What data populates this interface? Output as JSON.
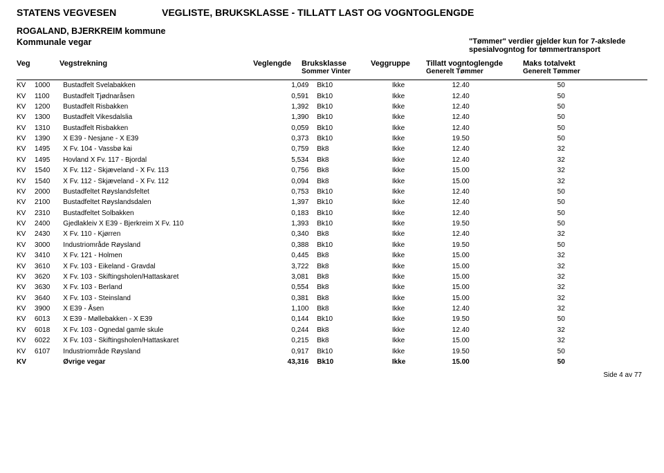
{
  "header": {
    "agency": "STATENS VEGVESEN",
    "title": "VEGLISTE, BRUKSKLASSE - TILLATT LAST OG VOGNTOGLENGDE",
    "region": "ROGALAND, BJERKREIM kommune",
    "roadtype": "Kommunale vegar",
    "timber_note1": "\"Tømmer\" verdier gjelder kun for 7-akslede",
    "timber_note2": "spesialvogntog for tømmertransport"
  },
  "columns": {
    "veg": "Veg",
    "str": "Vegstrekning",
    "len": "Veglengde",
    "bk": "Bruksklasse",
    "bk_sub": "Sommer   Vinter",
    "grp": "Veggruppe",
    "vog": "Tillatt vogntoglengde",
    "vog_sub": "Generelt       Tømmer",
    "max": "Maks totalvekt",
    "max_sub": "Generelt  Tømmer"
  },
  "rows": [
    {
      "v1": "KV",
      "v2": "1000",
      "str": "Bustadfelt Svelabakken",
      "len": "1,049",
      "bk": "Bk10",
      "grp": "Ikke",
      "vogg": "12.40",
      "vogt": "",
      "maxg": "50",
      "maxt": ""
    },
    {
      "v1": "KV",
      "v2": "1100",
      "str": "Bustadfelt Tjødnaråsen",
      "len": "0,591",
      "bk": "Bk10",
      "grp": "Ikke",
      "vogg": "12.40",
      "vogt": "",
      "maxg": "50",
      "maxt": ""
    },
    {
      "v1": "KV",
      "v2": "1200",
      "str": "Bustadfelt Risbakken",
      "len": "1,392",
      "bk": "Bk10",
      "grp": "Ikke",
      "vogg": "12.40",
      "vogt": "",
      "maxg": "50",
      "maxt": ""
    },
    {
      "v1": "KV",
      "v2": "1300",
      "str": "Bustadfelt Vikesdalslia",
      "len": "1,390",
      "bk": "Bk10",
      "grp": "Ikke",
      "vogg": "12.40",
      "vogt": "",
      "maxg": "50",
      "maxt": ""
    },
    {
      "v1": "KV",
      "v2": "1310",
      "str": "Bustadfelt Risbakken",
      "len": "0,059",
      "bk": "Bk10",
      "grp": "Ikke",
      "vogg": "12.40",
      "vogt": "",
      "maxg": "50",
      "maxt": ""
    },
    {
      "v1": "KV",
      "v2": "1390",
      "str": "X E39 - Nesjane - X E39",
      "len": "0,373",
      "bk": "Bk10",
      "grp": "Ikke",
      "vogg": "19.50",
      "vogt": "",
      "maxg": "50",
      "maxt": ""
    },
    {
      "v1": "KV",
      "v2": "1495",
      "str": "X Fv. 104 - Vassbø kai",
      "len": "0,759",
      "bk": "Bk8",
      "grp": "Ikke",
      "vogg": "12.40",
      "vogt": "",
      "maxg": "32",
      "maxt": ""
    },
    {
      "v1": "KV",
      "v2": "1495",
      "str": "Hovland X Fv. 117 - Bjordal",
      "len": "5,534",
      "bk": "Bk8",
      "grp": "Ikke",
      "vogg": "12.40",
      "vogt": "",
      "maxg": "32",
      "maxt": ""
    },
    {
      "v1": "KV",
      "v2": "1540",
      "str": "X Fv. 112 - Skjæveland - X Fv. 113",
      "len": "0,756",
      "bk": "Bk8",
      "grp": "Ikke",
      "vogg": "15.00",
      "vogt": "",
      "maxg": "32",
      "maxt": ""
    },
    {
      "v1": "KV",
      "v2": "1540",
      "str": "X Fv. 112 - Skjæveland - X Fv. 112",
      "len": "0,094",
      "bk": "Bk8",
      "grp": "Ikke",
      "vogg": "15.00",
      "vogt": "",
      "maxg": "32",
      "maxt": ""
    },
    {
      "v1": "KV",
      "v2": "2000",
      "str": "Bustadfeltet Røyslandsfeltet",
      "len": "0,753",
      "bk": "Bk10",
      "grp": "Ikke",
      "vogg": "12.40",
      "vogt": "",
      "maxg": "50",
      "maxt": ""
    },
    {
      "v1": "KV",
      "v2": "2100",
      "str": "Bustadfeltet Røyslandsdalen",
      "len": "1,397",
      "bk": "Bk10",
      "grp": "Ikke",
      "vogg": "12.40",
      "vogt": "",
      "maxg": "50",
      "maxt": ""
    },
    {
      "v1": "KV",
      "v2": "2310",
      "str": "Bustadfeltet Solbakken",
      "len": "0,183",
      "bk": "Bk10",
      "grp": "Ikke",
      "vogg": "12.40",
      "vogt": "",
      "maxg": "50",
      "maxt": ""
    },
    {
      "v1": "KV",
      "v2": "2400",
      "str": "Gjedlakleiv X E39 - Bjerkreim X Fv. 110",
      "len": "1,393",
      "bk": "Bk10",
      "grp": "Ikke",
      "vogg": "19.50",
      "vogt": "",
      "maxg": "50",
      "maxt": ""
    },
    {
      "v1": "KV",
      "v2": "2430",
      "str": "X Fv. 110 - Kjørren",
      "len": "0,340",
      "bk": "Bk8",
      "grp": "Ikke",
      "vogg": "12.40",
      "vogt": "",
      "maxg": "32",
      "maxt": ""
    },
    {
      "v1": "KV",
      "v2": "3000",
      "str": "Industriområde Røysland",
      "len": "0,388",
      "bk": "Bk10",
      "grp": "Ikke",
      "vogg": "19.50",
      "vogt": "",
      "maxg": "50",
      "maxt": ""
    },
    {
      "v1": "KV",
      "v2": "3410",
      "str": "X Fv. 121 - Holmen",
      "len": "0,445",
      "bk": "Bk8",
      "grp": "Ikke",
      "vogg": "15.00",
      "vogt": "",
      "maxg": "32",
      "maxt": ""
    },
    {
      "v1": "KV",
      "v2": "3610",
      "str": "X Fv. 103 - Eikeland - Gravdal",
      "len": "3,722",
      "bk": "Bk8",
      "grp": "Ikke",
      "vogg": "15.00",
      "vogt": "",
      "maxg": "32",
      "maxt": ""
    },
    {
      "v1": "KV",
      "v2": "3620",
      "str": "X Fv. 103 - Skiftingsholen/Hattaskaret",
      "len": "3,081",
      "bk": "Bk8",
      "grp": "Ikke",
      "vogg": "15.00",
      "vogt": "",
      "maxg": "32",
      "maxt": ""
    },
    {
      "v1": "KV",
      "v2": "3630",
      "str": "X Fv. 103 - Berland",
      "len": "0,554",
      "bk": "Bk8",
      "grp": "Ikke",
      "vogg": "15.00",
      "vogt": "",
      "maxg": "32",
      "maxt": ""
    },
    {
      "v1": "KV",
      "v2": "3640",
      "str": "X Fv. 103 - Steinsland",
      "len": "0,381",
      "bk": "Bk8",
      "grp": "Ikke",
      "vogg": "15.00",
      "vogt": "",
      "maxg": "32",
      "maxt": ""
    },
    {
      "v1": "KV",
      "v2": "3900",
      "str": "X E39 - Åsen",
      "len": "1,100",
      "bk": "Bk8",
      "grp": "Ikke",
      "vogg": "12.40",
      "vogt": "",
      "maxg": "32",
      "maxt": ""
    },
    {
      "v1": "KV",
      "v2": "6013",
      "str": "X E39 - Møllebakken - X E39",
      "len": "0,144",
      "bk": "Bk10",
      "grp": "Ikke",
      "vogg": "19.50",
      "vogt": "",
      "maxg": "50",
      "maxt": ""
    },
    {
      "v1": "KV",
      "v2": "6018",
      "str": "X Fv. 103 - Ognedal gamle skule",
      "len": "0,244",
      "bk": "Bk8",
      "grp": "Ikke",
      "vogg": "12.40",
      "vogt": "",
      "maxg": "32",
      "maxt": ""
    },
    {
      "v1": "KV",
      "v2": "6022",
      "str": "X Fv. 103 - Skiftingsholen/Hattaskaret",
      "len": "0,215",
      "bk": "Bk8",
      "grp": "Ikke",
      "vogg": "15.00",
      "vogt": "",
      "maxg": "32",
      "maxt": ""
    },
    {
      "v1": "KV",
      "v2": "6107",
      "str": "Industriområde Røysland",
      "len": "0,917",
      "bk": "Bk10",
      "grp": "Ikke",
      "vogg": "19.50",
      "vogt": "",
      "maxg": "50",
      "maxt": ""
    },
    {
      "v1": "KV",
      "v2": "",
      "str": "Øvrige vegar",
      "len": "43,316",
      "bk": "Bk10",
      "grp": "Ikke",
      "vogg": "15.00",
      "vogt": "",
      "maxg": "50",
      "maxt": "",
      "bold": true
    }
  ],
  "footer": "Side 4 av 77"
}
